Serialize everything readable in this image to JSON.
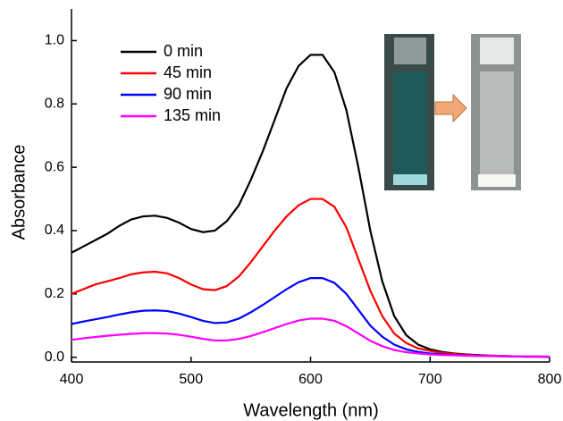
{
  "chart_data": {
    "type": "line",
    "xlabel": "Wavelength (nm)",
    "ylabel": "Absorbance",
    "x": [
      400,
      410,
      420,
      430,
      440,
      450,
      460,
      470,
      480,
      490,
      500,
      510,
      520,
      530,
      540,
      550,
      560,
      570,
      580,
      590,
      600,
      610,
      620,
      630,
      640,
      650,
      660,
      670,
      680,
      690,
      700,
      710,
      720,
      730,
      740,
      750,
      760,
      770,
      780,
      790,
      800
    ],
    "series": [
      {
        "name": "0 min",
        "color": "#000000",
        "values": [
          0.33,
          0.35,
          0.37,
          0.39,
          0.415,
          0.435,
          0.445,
          0.447,
          0.44,
          0.425,
          0.405,
          0.395,
          0.4,
          0.43,
          0.48,
          0.56,
          0.65,
          0.75,
          0.85,
          0.92,
          0.955,
          0.955,
          0.9,
          0.78,
          0.6,
          0.4,
          0.24,
          0.13,
          0.07,
          0.04,
          0.025,
          0.017,
          0.012,
          0.009,
          0.007,
          0.005,
          0.004,
          0.003,
          0.002,
          0.002,
          0.001
        ]
      },
      {
        "name": "45 min",
        "color": "#ff0000",
        "values": [
          0.2,
          0.215,
          0.23,
          0.24,
          0.25,
          0.262,
          0.268,
          0.27,
          0.265,
          0.25,
          0.23,
          0.215,
          0.212,
          0.225,
          0.255,
          0.3,
          0.35,
          0.4,
          0.445,
          0.48,
          0.5,
          0.5,
          0.475,
          0.41,
          0.31,
          0.21,
          0.13,
          0.075,
          0.045,
          0.028,
          0.02,
          0.014,
          0.01,
          0.008,
          0.006,
          0.005,
          0.004,
          0.003,
          0.003,
          0.002,
          0.002
        ]
      },
      {
        "name": "90 min",
        "color": "#0000ff",
        "values": [
          0.105,
          0.113,
          0.12,
          0.127,
          0.135,
          0.142,
          0.147,
          0.148,
          0.146,
          0.138,
          0.127,
          0.115,
          0.108,
          0.11,
          0.122,
          0.142,
          0.165,
          0.19,
          0.215,
          0.237,
          0.25,
          0.25,
          0.235,
          0.2,
          0.15,
          0.1,
          0.065,
          0.04,
          0.025,
          0.017,
          0.012,
          0.009,
          0.007,
          0.006,
          0.005,
          0.004,
          0.003,
          0.003,
          0.002,
          0.002,
          0.002
        ]
      },
      {
        "name": "135 min",
        "color": "#ff00ff",
        "values": [
          0.055,
          0.06,
          0.064,
          0.068,
          0.071,
          0.074,
          0.076,
          0.076,
          0.075,
          0.071,
          0.065,
          0.058,
          0.053,
          0.053,
          0.058,
          0.067,
          0.079,
          0.092,
          0.105,
          0.116,
          0.122,
          0.122,
          0.115,
          0.098,
          0.075,
          0.052,
          0.035,
          0.023,
          0.016,
          0.012,
          0.009,
          0.007,
          0.006,
          0.005,
          0.004,
          0.004,
          0.003,
          0.003,
          0.003,
          0.002,
          0.002
        ]
      }
    ],
    "xlim": [
      400,
      800
    ],
    "xticks": [
      400,
      500,
      600,
      700,
      800
    ],
    "ylim": [
      -0.015,
      1.1
    ],
    "yticks": [
      {
        "value": 0,
        "label": "0.0"
      },
      0.2,
      0.4,
      0.6,
      0.8,
      {
        "value": 1,
        "label": "1.0"
      }
    ],
    "legend": "upper left"
  }
}
